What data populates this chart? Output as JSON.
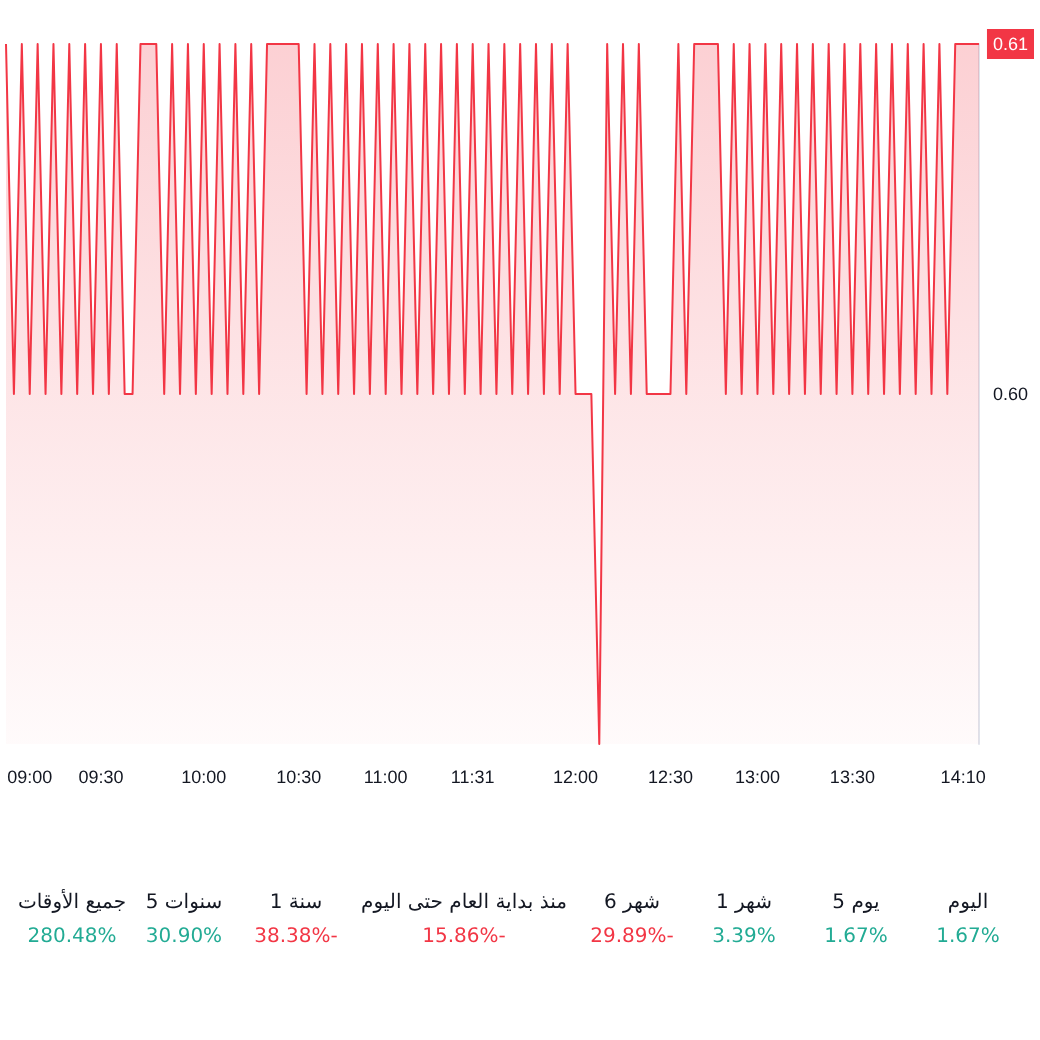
{
  "chart_data": [
    {
      "type": "area",
      "color": "#f23645",
      "categories": [
        null,
        null,
        null,
        "09:00",
        null,
        null,
        null,
        null,
        null,
        null,
        null,
        null,
        "09:30",
        null,
        null,
        null,
        null,
        null,
        null,
        null,
        null,
        null,
        null,
        null,
        null,
        "10:00",
        null,
        null,
        null,
        null,
        null,
        null,
        null,
        null,
        null,
        null,
        null,
        "10:30",
        null,
        null,
        null,
        null,
        null,
        null,
        null,
        null,
        null,
        null,
        "11:00",
        null,
        null,
        null,
        null,
        null,
        null,
        null,
        null,
        null,
        null,
        "11:31",
        null,
        null,
        null,
        null,
        null,
        null,
        null,
        null,
        null,
        null,
        null,
        null,
        "12:00",
        null,
        null,
        null,
        null,
        null,
        null,
        null,
        null,
        null,
        null,
        null,
        "12:30",
        null,
        null,
        null,
        null,
        null,
        null,
        null,
        null,
        null,
        null,
        "13:00",
        null,
        null,
        null,
        null,
        null,
        null,
        null,
        null,
        null,
        null,
        null,
        "13:30",
        null,
        null,
        null,
        null,
        null,
        null,
        null,
        null,
        null,
        null,
        null,
        null,
        null,
        "14:10",
        null,
        null
      ],
      "values": [
        0.61,
        0.6,
        0.61,
        0.6,
        0.61,
        0.6,
        0.61,
        0.6,
        0.61,
        0.6,
        0.61,
        0.6,
        0.61,
        0.6,
        0.61,
        0.6,
        0.6,
        0.61,
        0.61,
        0.61,
        0.6,
        0.61,
        0.6,
        0.61,
        0.6,
        0.61,
        0.6,
        0.61,
        0.6,
        0.61,
        0.6,
        0.61,
        0.6,
        0.61,
        0.61,
        0.61,
        0.61,
        0.61,
        0.6,
        0.61,
        0.6,
        0.61,
        0.6,
        0.61,
        0.6,
        0.61,
        0.6,
        0.61,
        0.6,
        0.61,
        0.6,
        0.61,
        0.6,
        0.61,
        0.6,
        0.61,
        0.6,
        0.61,
        0.6,
        0.61,
        0.6,
        0.61,
        0.6,
        0.61,
        0.6,
        0.61,
        0.6,
        0.61,
        0.6,
        0.61,
        0.6,
        0.61,
        0.6,
        0.6,
        0.6,
        0.59,
        0.61,
        0.6,
        0.61,
        0.6,
        0.61,
        0.6,
        0.6,
        0.6,
        0.6,
        0.61,
        0.6,
        0.61,
        0.61,
        0.61,
        0.61,
        0.6,
        0.61,
        0.6,
        0.61,
        0.6,
        0.61,
        0.6,
        0.61,
        0.6,
        0.61,
        0.6,
        0.61,
        0.6,
        0.61,
        0.6,
        0.61,
        0.6,
        0.61,
        0.6,
        0.61,
        0.6,
        0.61,
        0.6,
        0.61,
        0.6,
        0.61,
        0.6,
        0.61,
        0.6,
        0.61,
        0.61,
        0.61,
        0.61
      ],
      "ylim": [
        0.59,
        0.61
      ],
      "yticks": [
        {
          "value": 0.6,
          "label": "0.60"
        },
        {
          "value": 0.61,
          "label": "0.61"
        }
      ],
      "grid": false
    },
    {
      "type": "other",
      "categories": [
        "جميع الأوقات",
        "5 سنوات",
        "1 سنة",
        "منذ بداية العام حتى اليوم",
        "6 شهر",
        "1 شهر",
        "5 يوم",
        "اليوم"
      ],
      "value_labels": [
        "280.48%",
        "30.90%",
        "38.38%-",
        "15.86%-",
        "29.89%-",
        "3.39%",
        "1.67%",
        "1.67%"
      ],
      "colors": [
        "#22ab94",
        "#22ab94",
        "#f23645",
        "#f23645",
        "#f23645",
        "#22ab94",
        "#22ab94",
        "#22ab94"
      ]
    }
  ]
}
